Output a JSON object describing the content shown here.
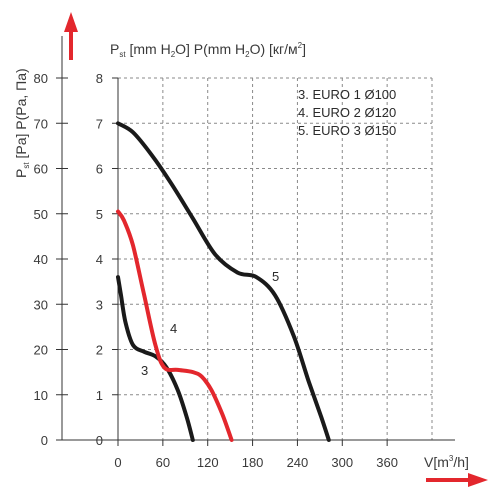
{
  "chart_data": {
    "type": "line",
    "axis_labels": {
      "y_outer": [
        "P",
        "st",
        " [Pa] P(Pa, Па)"
      ],
      "y_inner": [
        "P",
        "st",
        " [mm H",
        "2",
        "O] P(mm H",
        "2",
        "O) [кг/м",
        "2",
        "]"
      ],
      "x": [
        "V[m",
        "3",
        "/h]"
      ]
    },
    "x_ticks": [
      "0",
      "60",
      "120",
      "180",
      "240",
      "300",
      "360"
    ],
    "x_range": [
      0,
      420
    ],
    "y_outer_ticks": [
      "0",
      "10",
      "20",
      "30",
      "40",
      "50",
      "60",
      "70",
      "80"
    ],
    "y_outer_range": [
      0,
      80
    ],
    "y_inner_ticks": [
      "0",
      "1",
      "2",
      "3",
      "4",
      "5",
      "6",
      "7",
      "8"
    ],
    "y_inner_range": [
      0,
      8
    ],
    "grid": "dashed",
    "legend": [
      "3. EURO 1 Ø100",
      "4. EURO 2 Ø120",
      "5. EURO 3 Ø150"
    ],
    "legend_position": "top-right",
    "series": [
      {
        "label": "3",
        "color": "#1a1a1a",
        "points": [
          [
            0,
            3.6
          ],
          [
            4,
            3.2
          ],
          [
            10,
            2.6
          ],
          [
            20,
            2.1
          ],
          [
            35,
            1.95
          ],
          [
            50,
            1.85
          ],
          [
            65,
            1.6
          ],
          [
            80,
            1.1
          ],
          [
            92,
            0.5
          ],
          [
            100,
            0
          ]
        ]
      },
      {
        "label": "4",
        "color": "#e3272d",
        "points": [
          [
            0,
            5.05
          ],
          [
            8,
            4.85
          ],
          [
            20,
            4.3
          ],
          [
            35,
            3.2
          ],
          [
            50,
            2.1
          ],
          [
            62,
            1.6
          ],
          [
            80,
            1.55
          ],
          [
            100,
            1.5
          ],
          [
            112,
            1.4
          ],
          [
            125,
            1.1
          ],
          [
            140,
            0.55
          ],
          [
            152,
            0
          ]
        ]
      },
      {
        "label": "5",
        "color": "#1a1a1a",
        "points": [
          [
            0,
            7.0
          ],
          [
            20,
            6.8
          ],
          [
            45,
            6.3
          ],
          [
            70,
            5.7
          ],
          [
            100,
            4.9
          ],
          [
            130,
            4.1
          ],
          [
            160,
            3.7
          ],
          [
            185,
            3.6
          ],
          [
            210,
            3.2
          ],
          [
            235,
            2.3
          ],
          [
            255,
            1.3
          ],
          [
            272,
            0.5
          ],
          [
            282,
            0
          ]
        ]
      }
    ]
  },
  "colors": {
    "arrow": "#e3272d",
    "grid": "#8a8a8a",
    "axis": "#333333"
  }
}
